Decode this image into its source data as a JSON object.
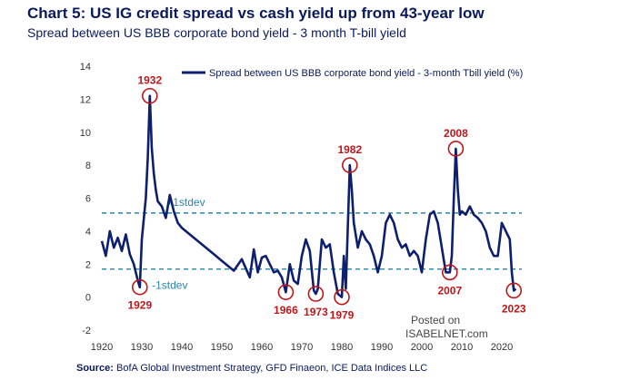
{
  "header": {
    "title": "Chart 5: US IG credit spread vs cash yield up from 43-year low",
    "subtitle": "Spread between US BBB corporate bond yield - 3 month T-bill yield"
  },
  "footer": {
    "source_label": "Source:",
    "source_text": "BofA Global Investment Strategy, GFD Finaeon, ICE Data Indices LLC"
  },
  "watermark": {
    "line1": "Posted on",
    "line2": "ISABELNET.com"
  },
  "colors": {
    "series": "#0d1f6e",
    "annotation": "#c0161a",
    "band": "#2a86a8"
  },
  "chart_data": {
    "type": "line",
    "title": "",
    "xlabel": "",
    "ylabel": "",
    "xlim": [
      1920,
      2025
    ],
    "ylim": [
      -2,
      14
    ],
    "xticks": [
      1920,
      1930,
      1940,
      1950,
      1960,
      1970,
      1980,
      1990,
      2000,
      2010,
      2020
    ],
    "yticks": [
      -2,
      0,
      2,
      4,
      6,
      8,
      10,
      12,
      14
    ],
    "grid": false,
    "legend": {
      "position": "top-right"
    },
    "series": [
      {
        "name": "Spread between US BBB corporate bond yield - 3-month Tbill yield (%)",
        "x": [
          1920,
          1921,
          1922,
          1923,
          1924,
          1925,
          1926,
          1927,
          1928,
          1929,
          1929.5,
          1930,
          1931,
          1931.5,
          1932,
          1932.5,
          1933,
          1933.5,
          1934,
          1935,
          1936,
          1937,
          1938,
          1939,
          1940,
          1942,
          1945,
          1948,
          1950,
          1953,
          1955,
          1957,
          1958,
          1959,
          1960,
          1961,
          1962,
          1963,
          1964,
          1965,
          1966,
          1967,
          1968,
          1969,
          1970,
          1971,
          1972,
          1973,
          1973.5,
          1974,
          1975,
          1976,
          1977,
          1978,
          1979,
          1980,
          1980.5,
          1981,
          1982,
          1982.5,
          1983,
          1984,
          1985,
          1986,
          1987,
          1988,
          1989,
          1990,
          1991,
          1992,
          1993,
          1994,
          1995,
          1996,
          1997,
          1998,
          1999,
          2000,
          2001,
          2002,
          2003,
          2004,
          2005,
          2006,
          2007,
          2007.5,
          2008,
          2008.5,
          2009,
          2009.5,
          2010,
          2011,
          2012,
          2013,
          2014,
          2015,
          2016,
          2017,
          2018,
          2019,
          2020,
          2021,
          2022,
          2022.5,
          2023,
          2023.5
        ],
        "y": [
          3.4,
          2.5,
          4.0,
          3.0,
          3.6,
          2.8,
          3.8,
          2.6,
          2.0,
          1.0,
          0.6,
          3.5,
          6.0,
          8.5,
          12.2,
          9.0,
          7.5,
          6.5,
          5.8,
          5.5,
          4.8,
          6.2,
          5.2,
          4.5,
          4.2,
          3.8,
          3.2,
          2.6,
          2.2,
          1.6,
          2.3,
          1.2,
          2.9,
          1.5,
          2.4,
          2.5,
          2.0,
          1.5,
          1.6,
          1.2,
          0.3,
          2.0,
          1.0,
          0.8,
          2.5,
          3.5,
          2.8,
          0.4,
          0.2,
          0.5,
          3.5,
          3.0,
          3.2,
          1.5,
          0.2,
          0.0,
          2.5,
          0.5,
          8.0,
          6.5,
          4.5,
          3.0,
          4.0,
          3.5,
          3.2,
          2.5,
          1.5,
          2.5,
          4.5,
          5.0,
          4.5,
          3.5,
          3.0,
          3.2,
          2.5,
          2.8,
          2.5,
          1.5,
          3.5,
          5.0,
          5.2,
          4.5,
          3.0,
          1.5,
          1.5,
          2.5,
          6.0,
          9.0,
          6.5,
          5.0,
          5.2,
          5.0,
          5.5,
          5.0,
          4.8,
          4.5,
          4.0,
          3.0,
          2.5,
          2.5,
          4.5,
          4.0,
          3.5,
          1.5,
          0.4,
          0.5
        ]
      }
    ],
    "reference_lines": [
      {
        "label": "+1stdev",
        "y": 5.1
      },
      {
        "label": "-1stdev",
        "y": 1.7
      }
    ],
    "annotations": [
      {
        "label": "1932",
        "x": 1932,
        "y": 12.2
      },
      {
        "label": "1929",
        "x": 1929.5,
        "y": 0.6
      },
      {
        "label": "1966",
        "x": 1966,
        "y": 0.3
      },
      {
        "label": "1973",
        "x": 1973.5,
        "y": 0.2
      },
      {
        "label": "1979",
        "x": 1980,
        "y": 0.0
      },
      {
        "label": "1982",
        "x": 1982,
        "y": 8.0
      },
      {
        "label": "2007",
        "x": 2007,
        "y": 1.5
      },
      {
        "label": "2008",
        "x": 2008.5,
        "y": 9.0
      },
      {
        "label": "2023",
        "x": 2023,
        "y": 0.4
      }
    ]
  }
}
